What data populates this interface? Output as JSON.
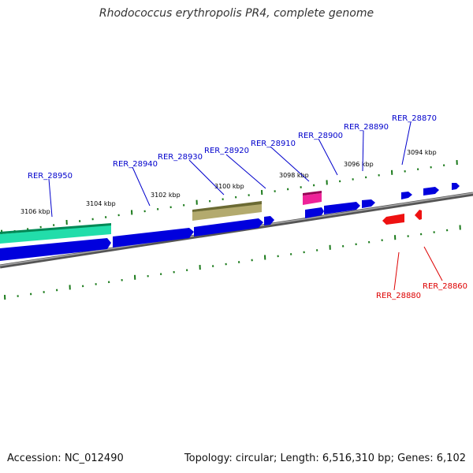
{
  "title": "Rhodococcus erythropolis PR4, complete genome",
  "footer": {
    "accession": "Accession: NC_012490",
    "stats": "Topology: circular; Length: 6,516,310 bp; Genes: 6,102"
  },
  "colors": {
    "backbone": "#888888",
    "tick": "#1a7a1a",
    "forward_label": "#0000cc",
    "reverse_label": "#dd0000",
    "blue_gene": "#0000dd",
    "red_gene": "#ee1111",
    "teal_feature": "#22ddaa",
    "olive_feature": "#aaa060",
    "pink_feature": "#ee2299"
  },
  "tick_labels": [
    "3106 kbp",
    "3104 kbp",
    "3102 kbp",
    "3100 kbp",
    "3098 kbp",
    "3096 kbp",
    "3094 kbp"
  ],
  "forward_genes": [
    "RER_28950",
    "RER_28940",
    "RER_28930",
    "RER_28920",
    "RER_28910",
    "RER_28900",
    "RER_28890",
    "RER_28870"
  ],
  "reverse_genes": [
    "RER_28880",
    "RER_28860"
  ]
}
